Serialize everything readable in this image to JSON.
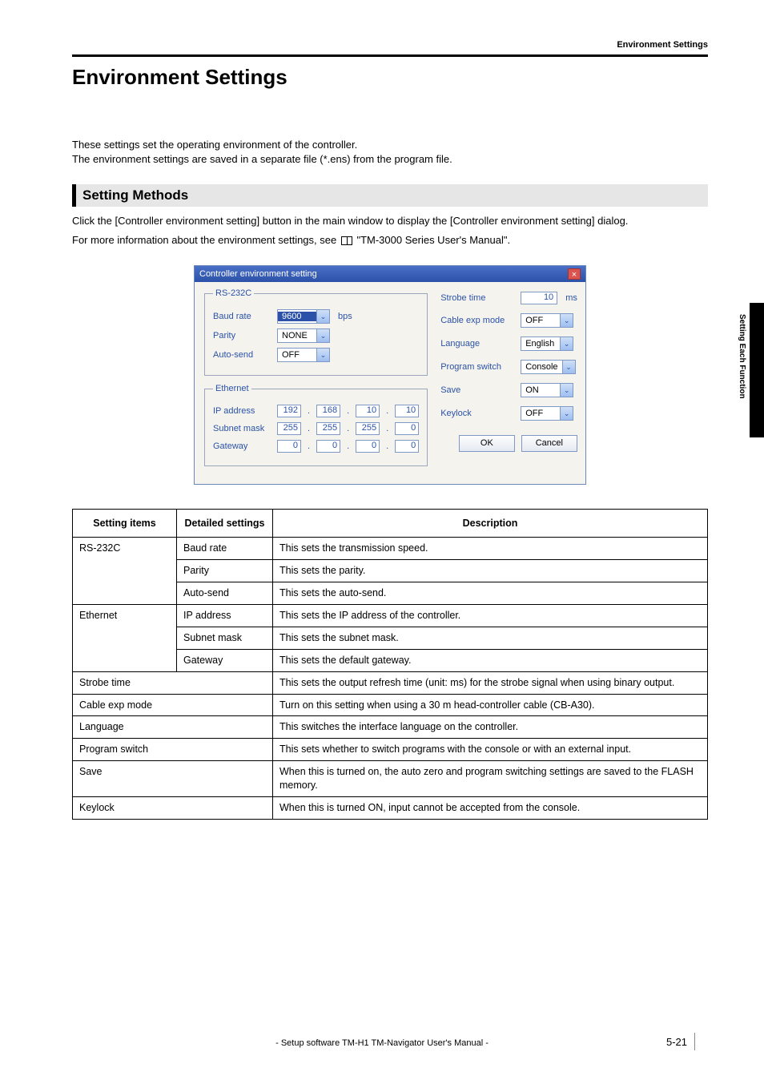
{
  "header_label": "Environment Settings",
  "page_title": "Environment Settings",
  "intro_line1": "These settings set the operating environment of the controller.",
  "intro_line2": "The environment settings are saved in a separate file (*.ens) from the program file.",
  "section_heading": "Setting Methods",
  "body_line1": "Click the [Controller environment setting] button in the main window to display the [Controller environment setting] dialog.",
  "body_line2_pre": "For more information about the environment settings, see ",
  "body_line2_post": " \"TM-3000 Series User's Manual\".",
  "dialog": {
    "title": "Controller environment setting",
    "close_glyph": "×",
    "rs232c_legend": "RS-232C",
    "ethernet_legend": "Ethernet",
    "baud_label": "Baud rate",
    "baud_value": "9600",
    "baud_unit": "bps",
    "parity_label": "Parity",
    "parity_value": "NONE",
    "autosend_label": "Auto-send",
    "autosend_value": "OFF",
    "ip_label": "IP address",
    "ip": [
      "192",
      "168",
      "10",
      "10"
    ],
    "subnet_label": "Subnet mask",
    "subnet": [
      "255",
      "255",
      "255",
      "0"
    ],
    "gateway_label": "Gateway",
    "gateway": [
      "0",
      "0",
      "0",
      "0"
    ],
    "strobe_label": "Strobe time",
    "strobe_value": "10",
    "strobe_unit": "ms",
    "cable_label": "Cable exp mode",
    "cable_value": "OFF",
    "language_label": "Language",
    "language_value": "English",
    "progsw_label": "Program switch",
    "progsw_value": "Console",
    "save_label": "Save",
    "save_value": "ON",
    "keylock_label": "Keylock",
    "keylock_value": "OFF",
    "ok": "OK",
    "cancel": "Cancel",
    "caret": "⌄"
  },
  "table": {
    "h1": "Setting items",
    "h2": "Detailed settings",
    "h3": "Description",
    "rows": [
      {
        "c1": "RS-232C",
        "c2": "Baud rate",
        "c3": "This sets the transmission speed.",
        "rowspan": 3
      },
      {
        "c2": "Parity",
        "c3": "This sets the parity."
      },
      {
        "c2": "Auto-send",
        "c3": "This sets the auto-send."
      },
      {
        "c1": "Ethernet",
        "c2": "IP address",
        "c3": "This sets the IP address of the controller.",
        "rowspan": 3
      },
      {
        "c2": "Subnet mask",
        "c3": "This sets the subnet mask."
      },
      {
        "c2": "Gateway",
        "c3": "This sets the default gateway."
      },
      {
        "c1": "Strobe time",
        "c3": "This sets the output refresh time (unit: ms) for the strobe signal when using binary output.",
        "span": true
      },
      {
        "c1": "Cable exp mode",
        "c3": "Turn on this setting when using a 30 m head-controller cable (CB-A30).",
        "span": true
      },
      {
        "c1": "Language",
        "c3": "This switches the interface language on the controller.",
        "span": true
      },
      {
        "c1": "Program switch",
        "c3": "This sets whether to switch programs with the console or with an external input.",
        "span": true
      },
      {
        "c1": "Save",
        "c3": "When this is turned on, the auto zero and program switching settings are saved to the FLASH memory.",
        "span": true
      },
      {
        "c1": "Keylock",
        "c3": "When this is turned ON, input cannot be accepted from the console.",
        "span": true
      }
    ]
  },
  "side_label": "Setting Each Function",
  "footer_text": "- Setup software TM-H1 TM-Navigator User's Manual -",
  "page_num_chapter": "5-",
  "page_num": "21"
}
